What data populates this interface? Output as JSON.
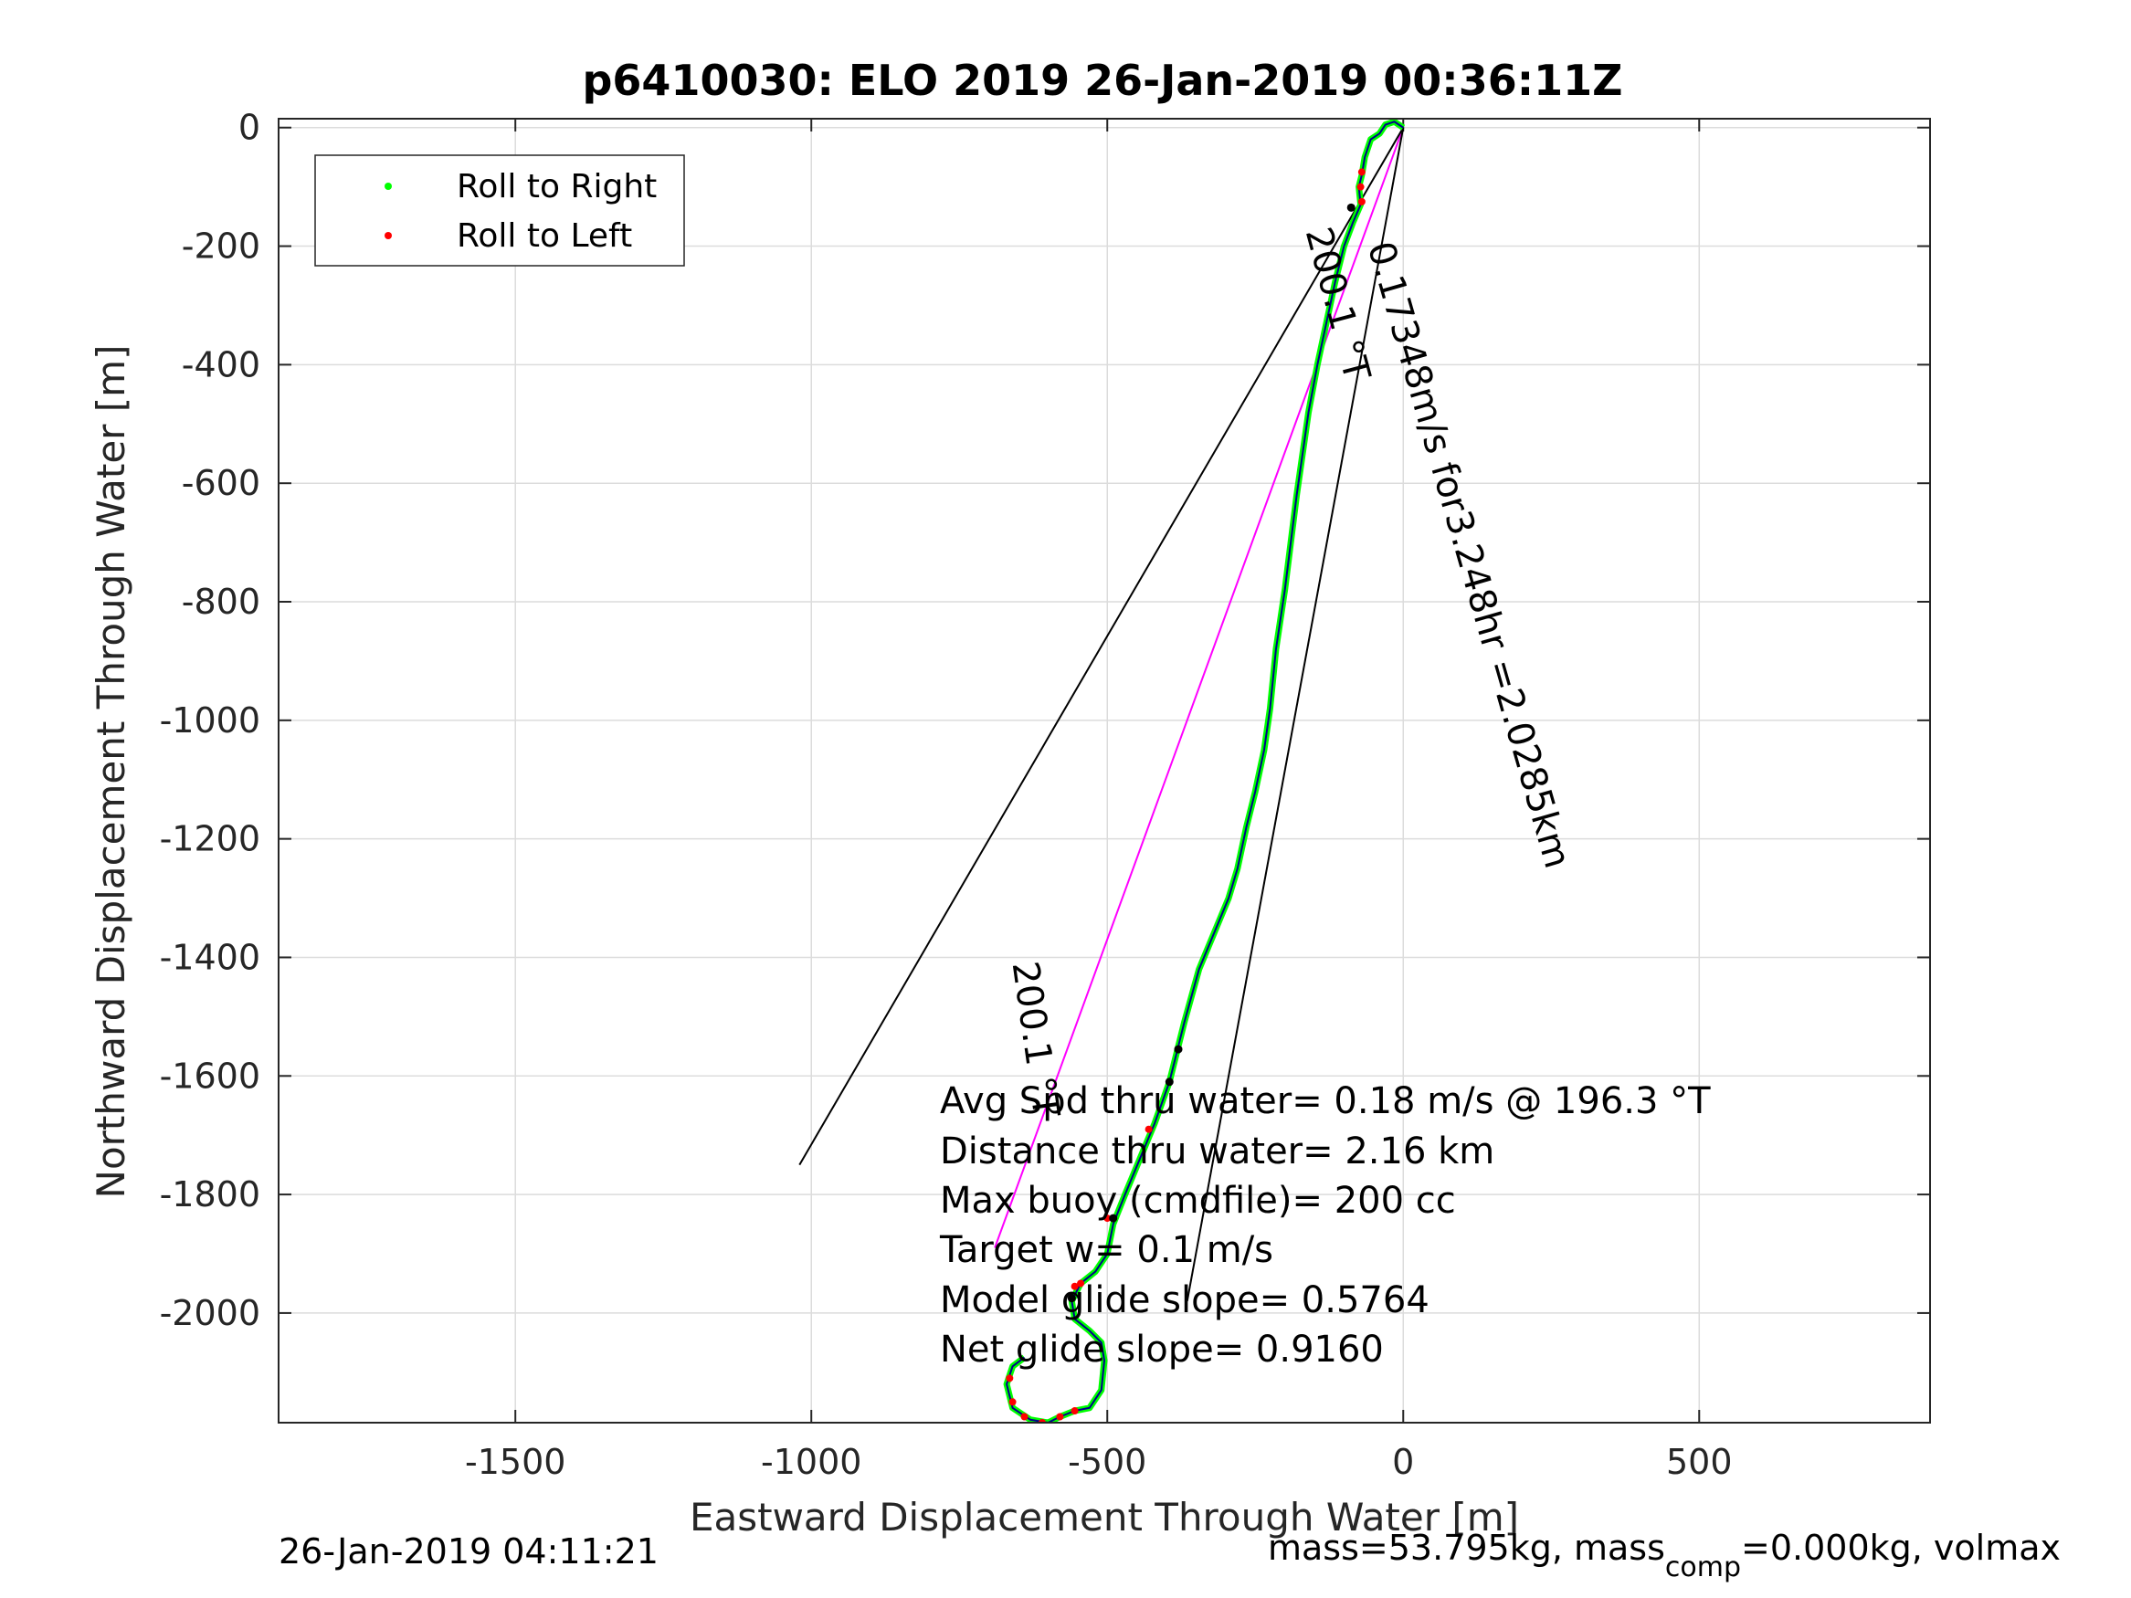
{
  "chart_data": {
    "type": "scatter",
    "title": "p6410030: ELO 2019 26-Jan-2019 00:36:11Z",
    "xlabel": "Eastward Displacement Through Water [m]",
    "ylabel": "Northward Displacement Through Water [m]",
    "xlim": [
      -1900,
      890
    ],
    "ylim": [
      -2185,
      15
    ],
    "x_ticks": [
      -1500,
      -1000,
      -500,
      0,
      500
    ],
    "x_tick_labels": [
      "-1500",
      "-1000",
      "-500",
      "0",
      "500"
    ],
    "y_ticks": [
      0,
      -200,
      -400,
      -600,
      -800,
      -1000,
      -1200,
      -1400,
      -1600,
      -1800,
      -2000
    ],
    "y_tick_labels": [
      "0",
      "-200",
      "-400",
      "-600",
      "-800",
      "-1000",
      "-1200",
      "-1400",
      "-1600",
      "-1800",
      "-2000"
    ],
    "grid": true,
    "legend_position": "top-left",
    "legend": [
      {
        "name": "Roll to Right",
        "color": "#00ff00"
      },
      {
        "name": "Roll to Left",
        "color": "#ff0000"
      }
    ],
    "track": [
      [
        0,
        0
      ],
      [
        -15,
        10
      ],
      [
        -30,
        5
      ],
      [
        -40,
        -10
      ],
      [
        -55,
        -20
      ],
      [
        -65,
        -50
      ],
      [
        -70,
        -80
      ],
      [
        -75,
        -100
      ],
      [
        -72,
        -130
      ],
      [
        -85,
        -160
      ],
      [
        -100,
        -200
      ],
      [
        -115,
        -260
      ],
      [
        -130,
        -330
      ],
      [
        -145,
        -400
      ],
      [
        -160,
        -480
      ],
      [
        -170,
        -550
      ],
      [
        -180,
        -620
      ],
      [
        -190,
        -700
      ],
      [
        -200,
        -780
      ],
      [
        -215,
        -880
      ],
      [
        -225,
        -980
      ],
      [
        -235,
        -1050
      ],
      [
        -250,
        -1120
      ],
      [
        -265,
        -1180
      ],
      [
        -280,
        -1250
      ],
      [
        -295,
        -1300
      ],
      [
        -320,
        -1360
      ],
      [
        -345,
        -1420
      ],
      [
        -370,
        -1510
      ],
      [
        -380,
        -1550
      ],
      [
        -395,
        -1610
      ],
      [
        -420,
        -1680
      ],
      [
        -445,
        -1740
      ],
      [
        -470,
        -1800
      ],
      [
        -490,
        -1850
      ],
      [
        -500,
        -1900
      ],
      [
        -520,
        -1930
      ],
      [
        -545,
        -1950
      ],
      [
        -560,
        -1980
      ],
      [
        -555,
        -2010
      ],
      [
        -530,
        -2030
      ],
      [
        -510,
        -2050
      ],
      [
        -505,
        -2080
      ],
      [
        -510,
        -2130
      ],
      [
        -530,
        -2160
      ],
      [
        -555,
        -2165
      ],
      [
        -580,
        -2175
      ],
      [
        -600,
        -2185
      ],
      [
        -630,
        -2180
      ],
      [
        -660,
        -2160
      ],
      [
        -670,
        -2120
      ],
      [
        -660,
        -2090
      ],
      [
        -640,
        -2075
      ]
    ],
    "left_roll_points": [
      [
        -70,
        -75
      ],
      [
        -72,
        -100
      ],
      [
        -70,
        -125
      ],
      [
        -430,
        -1690
      ],
      [
        -500,
        -1840
      ],
      [
        -555,
        -1955
      ],
      [
        -545,
        -1950
      ],
      [
        -665,
        -2110
      ],
      [
        -660,
        -2150
      ],
      [
        -640,
        -2175
      ],
      [
        -610,
        -2185
      ],
      [
        -580,
        -2175
      ],
      [
        -555,
        -2165
      ]
    ],
    "black_points": [
      [
        -88,
        -135
      ],
      [
        -380,
        -1555
      ],
      [
        -395,
        -1610
      ],
      [
        -490,
        -1840
      ],
      [
        -560,
        -1975
      ]
    ],
    "lines": [
      {
        "color": "#ff00ff",
        "from": [
          0,
          0
        ],
        "to": [
          -690,
          -1890
        ]
      },
      {
        "color": "#000000",
        "from": [
          0,
          0
        ],
        "to": [
          -1020,
          -1750
        ]
      },
      {
        "color": "#000000",
        "from": [
          0,
          0
        ],
        "to": [
          -365,
          -1980
        ]
      }
    ],
    "rotated_labels": [
      {
        "text": "200.1 °T",
        "at": [
          -165,
          -175
        ],
        "angle": 75
      },
      {
        "text": "0.17348m/s for3.248hr =2.0285km",
        "at": [
          -60,
          -200
        ],
        "angle": 74
      },
      {
        "text": "200.1 °T",
        "at": [
          -660,
          -1410
        ],
        "angle": 82
      }
    ]
  },
  "annotations": [
    "Avg Spd thru water=  0.18 m/s @ 196.3 °T",
    "Distance thru water=  2.16 km",
    "Max buoy (cmdfile)= 200 cc",
    "Target w= 0.1 m/s",
    "Model glide slope= 0.5764",
    "Net glide slope= 0.9160"
  ],
  "footer": {
    "timestamp": "26-Jan-2019 04:11:21",
    "mass_prefix": "mass=53.795kg, mass",
    "mass_subscript": "comp",
    "mass_suffix": "=0.000kg, volmax"
  }
}
